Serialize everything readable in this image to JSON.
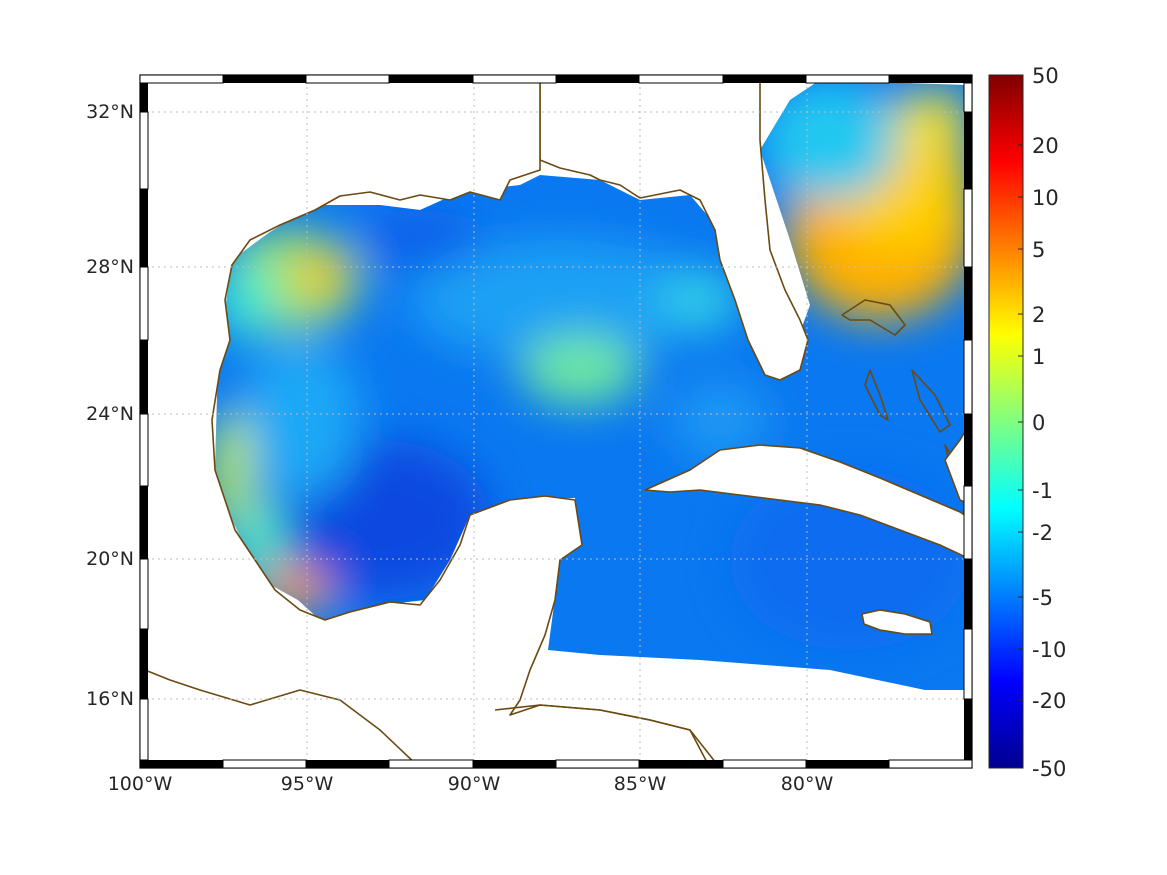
{
  "map": {
    "lon_ticks": [
      "100°W",
      "95°W",
      "90°W",
      "85°W",
      "80°W"
    ],
    "lat_ticks": [
      "32°N",
      "28°N",
      "24°N",
      "20°N",
      "16°N"
    ],
    "lon_range": [
      -100,
      -75
    ],
    "lat_range": [
      14.3,
      33
    ],
    "grid": true,
    "coastline_color": "#6b4a12"
  },
  "colorbar": {
    "tick_labels": [
      "50",
      "20",
      "10",
      "5",
      "2",
      "1",
      "0",
      "-1",
      "-2",
      "-5",
      "-10",
      "-20",
      "-50"
    ],
    "colormap": "jet",
    "range": [
      -50,
      50
    ]
  }
}
